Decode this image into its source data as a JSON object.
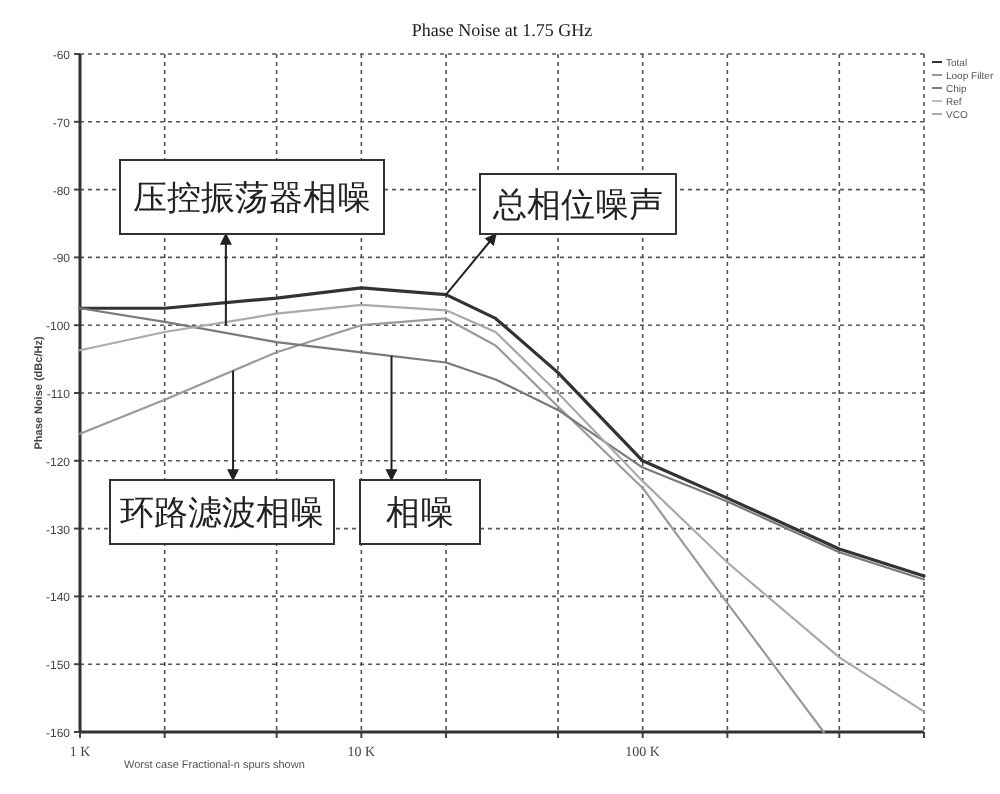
{
  "chart_data": {
    "type": "line",
    "title": "Phase Noise at 1.75 GHz",
    "ylabel": "Phase Noise (dBc/Hz)",
    "log": "x",
    "xlim": [
      1000,
      1000000
    ],
    "ylim": [
      -160,
      -60
    ],
    "xticks": [
      {
        "value": 1000,
        "label": "1 K"
      },
      {
        "value": 2000,
        "label": null
      },
      {
        "value": 5000,
        "label": null
      },
      {
        "value": 10000,
        "label": "10 K"
      },
      {
        "value": 20000,
        "label": null
      },
      {
        "value": 50000,
        "label": null
      },
      {
        "value": 100000,
        "label": "100 K"
      },
      {
        "value": 200000,
        "label": null
      },
      {
        "value": 500000,
        "label": null
      },
      {
        "value": 1000000,
        "label": null
      }
    ],
    "yticks": [
      -160,
      -150,
      -140,
      -130,
      -120,
      -110,
      -100,
      -90,
      -80,
      -70,
      -60
    ],
    "grid": true,
    "legend": "top right",
    "line_style": "solid",
    "marker": "none",
    "x": [
      1000,
      2000,
      5000,
      10000,
      20000,
      30000,
      50000,
      100000,
      200000,
      500000,
      1000000
    ],
    "series": [
      {
        "name": "Total",
        "color": "#333333",
        "values": [
          -97.5,
          -97.5,
          -96,
          -94.5,
          -95.5,
          -99,
          -107,
          -120,
          -125.5,
          -133,
          -137
        ]
      },
      {
        "name": "Loop Filter",
        "color": "#9a9a9a",
        "x": [
          1000,
          2000,
          5000,
          10000,
          20000,
          30000,
          50000,
          100000,
          200000,
          440000
        ],
        "values": [
          -116,
          -111,
          -104,
          -100,
          -99,
          -103,
          -112,
          -124,
          -141,
          -160
        ]
      },
      {
        "name": "Chip",
        "color": "#7a7a7a",
        "values": [
          -97.5,
          -99.5,
          -102.5,
          -104,
          -105.5,
          -108,
          -112.5,
          -121,
          -126,
          -133.5,
          -137.5
        ]
      },
      {
        "name": "Ref",
        "color": "#bbbbbb",
        "values": [
          null,
          null,
          null,
          null,
          null,
          null,
          null,
          null,
          null,
          null,
          null
        ]
      },
      {
        "name": "VCO",
        "color": "#aaaaaa",
        "values": [
          -103.7,
          -101,
          -98.3,
          -97,
          -97.8,
          -101,
          -110,
          -123,
          -135,
          -149,
          -157
        ]
      }
    ],
    "annotations": [
      {
        "text": "压控振荡器相噪",
        "x": 3300,
        "y": -100
      },
      {
        "text": "总相位噪声",
        "x": 20000,
        "y": -95.5
      },
      {
        "text": "环路滤波相噪",
        "x": 3500,
        "y": -106.7
      },
      {
        "text": "相噪",
        "x": 12800,
        "y": -104.5
      },
      "Worst case Fractional-n spurs shown"
    ]
  }
}
